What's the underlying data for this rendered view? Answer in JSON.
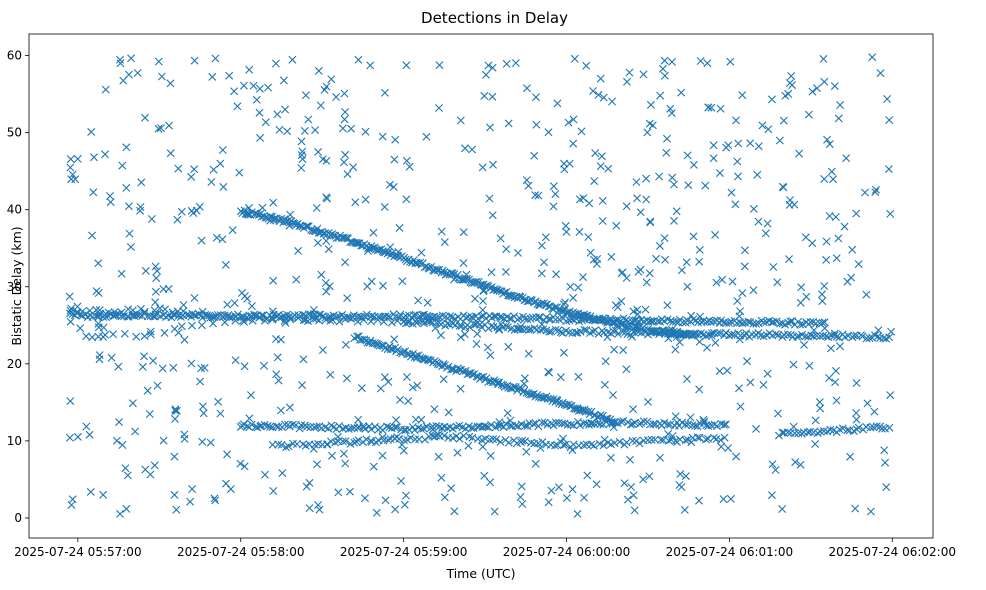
{
  "chart_data": {
    "type": "scatter",
    "title": "Detections in Delay",
    "xlabel": "Time (UTC)",
    "ylabel": "Bistatic Delay (km)",
    "marker": "x",
    "color": "#1f77b4",
    "grid": false,
    "xlim": [
      -0.3,
      5.25
    ],
    "ylim": [
      -2.6,
      62.8
    ],
    "x_units": "minutes after 2025-07-24 05:57:00",
    "xticks": [
      {
        "value": 0,
        "label": "2025-07-24 05:57:00"
      },
      {
        "value": 1,
        "label": "2025-07-24 05:58:00"
      },
      {
        "value": 2,
        "label": "2025-07-24 05:59:00"
      },
      {
        "value": 3,
        "label": "2025-07-24 06:00:00"
      },
      {
        "value": 4,
        "label": "2025-07-24 06:01:00"
      },
      {
        "value": 5,
        "label": "2025-07-24 06:02:00"
      }
    ],
    "yticks": [
      {
        "value": 0,
        "label": "0"
      },
      {
        "value": 10,
        "label": "10"
      },
      {
        "value": 20,
        "label": "20"
      },
      {
        "value": 30,
        "label": "30"
      },
      {
        "value": 40,
        "label": "40"
      },
      {
        "value": 50,
        "label": "50"
      },
      {
        "value": 60,
        "label": "60"
      }
    ],
    "tracks": [
      {
        "name": "descending-track-upper",
        "points": [
          [
            1.0,
            39.8
          ],
          [
            1.3,
            38.4
          ],
          [
            1.6,
            36.5
          ],
          [
            2.0,
            33.7
          ],
          [
            2.4,
            30.8
          ],
          [
            2.8,
            28.0
          ],
          [
            3.2,
            25.7
          ],
          [
            3.5,
            24.4
          ],
          [
            3.8,
            23.8
          ]
        ],
        "spacing": 0.01
      },
      {
        "name": "descending-track-lower",
        "points": [
          [
            1.7,
            23.5
          ],
          [
            2.1,
            20.8
          ],
          [
            2.5,
            18.0
          ],
          [
            2.9,
            15.4
          ],
          [
            3.2,
            13.2
          ],
          [
            3.3,
            12.5
          ]
        ],
        "spacing": 0.011
      },
      {
        "name": "level-track-26",
        "points": [
          [
            -0.05,
            26.3
          ],
          [
            1.0,
            26.2
          ],
          [
            2.0,
            26.2
          ],
          [
            3.0,
            25.8
          ],
          [
            4.0,
            25.5
          ],
          [
            4.6,
            25.2
          ]
        ],
        "spacing": 0.016
      },
      {
        "name": "level-track-25",
        "points": [
          [
            2.0,
            25.5
          ],
          [
            3.0,
            24.2
          ],
          [
            4.0,
            23.8
          ],
          [
            5.0,
            23.5
          ]
        ],
        "spacing": 0.018
      },
      {
        "name": "level-track-12",
        "points": [
          [
            1.0,
            12.0
          ],
          [
            2.0,
            11.6
          ],
          [
            3.3,
            12.4
          ],
          [
            4.0,
            12.0
          ]
        ],
        "spacing": 0.018
      },
      {
        "name": "level-track-10",
        "points": [
          [
            1.2,
            9.3
          ],
          [
            2.3,
            10.6
          ],
          [
            3.0,
            9.4
          ],
          [
            3.6,
            10.0
          ],
          [
            4.0,
            10.4
          ]
        ],
        "spacing": 0.025
      },
      {
        "name": "level-track-11",
        "points": [
          [
            4.3,
            10.9
          ],
          [
            5.0,
            11.8
          ]
        ],
        "spacing": 0.02
      },
      {
        "name": "level-track-27",
        "points": [
          [
            -0.05,
            26.8
          ],
          [
            0.5,
            27.0
          ],
          [
            1.2,
            25.8
          ],
          [
            2.2,
            25.5
          ]
        ],
        "spacing": 0.04
      },
      {
        "name": "level-track-24",
        "points": [
          [
            0.05,
            23.5
          ],
          [
            0.4,
            23.8
          ],
          [
            0.9,
            25.5
          ],
          [
            1.5,
            26.0
          ]
        ],
        "spacing": 0.06
      }
    ],
    "background_clutter": {
      "count": 760,
      "x_range": [
        -0.05,
        5.0
      ],
      "y_range": [
        0.5,
        59.8
      ],
      "seed": 7
    }
  }
}
